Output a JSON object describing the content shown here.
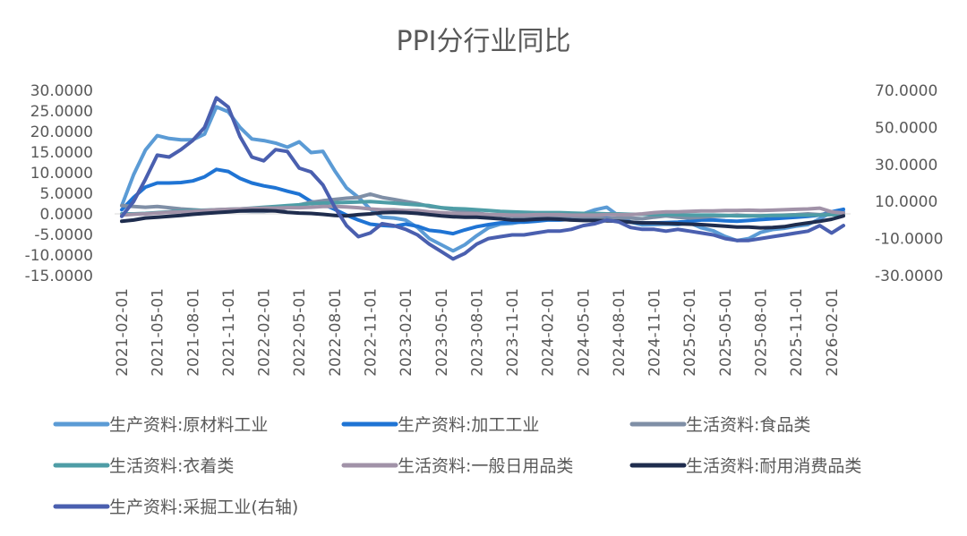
{
  "chart_data": {
    "type": "line",
    "title": "PPI分行业同比",
    "x": [
      "2021-02-01",
      "2021-03-01",
      "2021-04-01",
      "2021-05-01",
      "2021-06-01",
      "2021-07-01",
      "2021-08-01",
      "2021-09-01",
      "2021-10-01",
      "2021-11-01",
      "2021-12-01",
      "2022-01-01",
      "2022-02-01",
      "2022-03-01",
      "2022-04-01",
      "2022-05-01",
      "2022-06-01",
      "2022-07-01",
      "2022-08-01",
      "2022-09-01",
      "2022-10-01",
      "2022-11-01",
      "2022-12-01",
      "2023-01-01",
      "2023-02-01",
      "2023-03-01",
      "2023-04-01",
      "2023-05-01",
      "2023-06-01",
      "2023-07-01",
      "2023-08-01",
      "2023-09-01",
      "2023-10-01",
      "2023-11-01",
      "2023-12-01",
      "2024-01-01",
      "2024-02-01",
      "2024-03-01",
      "2024-04-01",
      "2024-05-01",
      "2024-06-01",
      "2024-07-01",
      "2024-08-01",
      "2024-09-01",
      "2024-10-01",
      "2024-11-01",
      "2024-12-01",
      "2025-01-01",
      "2025-02-01",
      "2025-03-01",
      "2025-04-01",
      "2025-05-01",
      "2025-06-01",
      "2025-07-01",
      "2025-08-01",
      "2025-09-01",
      "2025-10-01",
      "2025-11-01",
      "2025-12-01",
      "2026-01-01",
      "2026-02-01",
      "2026-03-01"
    ],
    "x_tick_labels": [
      "2021-02-01",
      "2021-05-01",
      "2021-08-01",
      "2021-11-01",
      "2022-02-01",
      "2022-05-01",
      "2022-08-01",
      "2022-11-01",
      "2023-02-01",
      "2023-05-01",
      "2023-08-01",
      "2023-11-01",
      "2024-02-01",
      "2024-05-01",
      "2024-08-01",
      "2024-11-01",
      "2025-02-01",
      "2025-05-01",
      "2025-08-01",
      "2025-11-01",
      "2026-02-01"
    ],
    "y_left": {
      "ylim": [
        -15,
        30
      ],
      "ticks": [
        "30.0000",
        "25.0000",
        "20.0000",
        "15.0000",
        "10.0000",
        "5.0000",
        "0.0000",
        "-5.0000",
        "-10.0000",
        "-15.0000"
      ]
    },
    "y_right": {
      "ylim": [
        -30,
        70
      ],
      "ticks": [
        "70.0000",
        "50.0000",
        "30.0000",
        "10.0000",
        "-10.0000",
        "-30.0000"
      ]
    },
    "series": [
      {
        "name": "生产资料:原材料工业",
        "axis": "left",
        "color": "#5B9BD5",
        "values": [
          2,
          9.5,
          15.5,
          19,
          18.3,
          18,
          18,
          19.4,
          26,
          24.8,
          21,
          18.2,
          17.8,
          17.2,
          16.2,
          17.5,
          14.9,
          15.2,
          10.5,
          6.3,
          4,
          1.2,
          -0.8,
          -1,
          -1.5,
          -3.3,
          -6,
          -7.5,
          -9,
          -7.5,
          -5.3,
          -3.4,
          -2.5,
          -2.3,
          -1.8,
          -1.5,
          -1.3,
          -0.9,
          -0.5,
          0,
          1,
          1.6,
          -0.5,
          -2,
          -2.7,
          -2.6,
          -2.5,
          -2.6,
          -2.2,
          -3.4,
          -4.1,
          -5.5,
          -6.5,
          -6,
          -4.5,
          -3.8,
          -3.5,
          -3,
          -2.6,
          -1.2,
          0.4,
          0.5
        ]
      },
      {
        "name": "生产资料:加工工业",
        "axis": "left",
        "color": "#1F74D4",
        "values": [
          1,
          4,
          6.5,
          7.5,
          7.5,
          7.6,
          8,
          9,
          10.8,
          10.3,
          8.6,
          7.5,
          6.8,
          6.3,
          5.5,
          4.8,
          3,
          2.4,
          1.1,
          -0.3,
          -1.5,
          -2.5,
          -2.8,
          -3,
          -2.5,
          -3,
          -4,
          -4.3,
          -4.8,
          -3.9,
          -3.1,
          -2.6,
          -2.2,
          -2,
          -2,
          -1.8,
          -1.5,
          -1.5,
          -1.3,
          -1,
          -1,
          -1,
          -1.3,
          -2,
          -2.2,
          -2.2,
          -2.1,
          -2,
          -1.8,
          -1.5,
          -1.5,
          -1.7,
          -1.8,
          -1.6,
          -1.4,
          -1.2,
          -1,
          -0.8,
          -0.6,
          -0.3,
          0.5,
          1.1
        ]
      },
      {
        "name": "生活资料:食品类",
        "axis": "left",
        "color": "#7F8FA6",
        "values": [
          2,
          1.8,
          1.6,
          1.8,
          1.5,
          1.2,
          1,
          0.8,
          0.5,
          0.8,
          0.7,
          0.6,
          0.6,
          0.8,
          1.5,
          2.2,
          2.8,
          3.2,
          3.5,
          3.8,
          4,
          4.8,
          4,
          3.5,
          3,
          2.5,
          1.8,
          1.5,
          1,
          0.6,
          0.2,
          -0.2,
          -0.3,
          -0.6,
          -1,
          -1,
          -0.8,
          -0.6,
          -0.6,
          -0.8,
          -1,
          -1.2,
          -1,
          -1,
          -1.2,
          -0.8,
          -0.5,
          -0.8,
          -1,
          -0.8,
          -0.6,
          -0.5,
          -0.3,
          -0.5,
          -0.5,
          -0.4,
          -0.3,
          -0.2,
          0,
          -0.2,
          0,
          -0.2
        ]
      },
      {
        "name": "生活资料:衣着类",
        "axis": "left",
        "color": "#4E9DA6",
        "values": [
          0,
          0,
          0.1,
          0.3,
          0.5,
          0.7,
          0.8,
          0.9,
          1,
          1.1,
          1.2,
          1.4,
          1.6,
          1.8,
          2,
          2.2,
          2.5,
          2.6,
          2.7,
          2.8,
          2.9,
          3,
          2.8,
          2.6,
          2.4,
          2.2,
          2,
          1.5,
          1.3,
          1.2,
          1,
          0.8,
          0.6,
          0.5,
          0.4,
          0.3,
          0.3,
          0.3,
          0.2,
          0.1,
          0.1,
          0,
          0,
          -0.1,
          -0.1,
          -0.2,
          -0.2,
          -0.2,
          -0.3,
          -0.3,
          -0.3,
          -0.4,
          -0.5,
          -0.5,
          -0.5,
          -0.4,
          -0.4,
          -0.3,
          -0.3,
          -0.3,
          -0.2,
          -0.2
        ]
      },
      {
        "name": "生活资料:一般日用品类",
        "axis": "left",
        "color": "#A192A8",
        "values": [
          -0.3,
          -0.1,
          0,
          0.2,
          0.4,
          0.5,
          0.6,
          0.8,
          1,
          1.1,
          1.2,
          1.3,
          1.4,
          1.4,
          1.5,
          1.5,
          1.6,
          1.8,
          1.8,
          1.7,
          1.5,
          1.2,
          1,
          1,
          0.8,
          0.8,
          0.5,
          0.3,
          0.1,
          0,
          0,
          -0.2,
          -0.2,
          -0.3,
          -0.3,
          -0.2,
          -0.2,
          -0.2,
          -0.3,
          -0.3,
          -0.3,
          -0.2,
          -0.2,
          -0.2,
          0,
          0.3,
          0.5,
          0.5,
          0.6,
          0.7,
          0.7,
          0.8,
          0.8,
          0.9,
          0.8,
          0.9,
          1,
          1.1,
          1.2,
          1.4,
          0.5,
          0.2
        ]
      },
      {
        "name": "生活资料:耐用消费品类",
        "axis": "left",
        "color": "#1F2D4E",
        "values": [
          -1.8,
          -1.5,
          -1,
          -0.8,
          -0.6,
          -0.4,
          -0.1,
          0.1,
          0.3,
          0.5,
          0.7,
          0.8,
          0.8,
          0.7,
          0.4,
          0.2,
          0.1,
          -0.1,
          -0.4,
          -0.5,
          -0.2,
          0,
          0.3,
          0.4,
          0.3,
          0.1,
          -0.2,
          -0.5,
          -0.7,
          -0.8,
          -0.8,
          -1,
          -1.2,
          -1.5,
          -1.5,
          -1.3,
          -1.2,
          -1.3,
          -1.5,
          -1.6,
          -1.6,
          -1.7,
          -1.8,
          -2,
          -2.2,
          -2.2,
          -2.3,
          -2.4,
          -2.5,
          -2.6,
          -2.8,
          -3,
          -3.2,
          -3.2,
          -3.4,
          -3.3,
          -3.1,
          -2.6,
          -2.2,
          -1.8,
          -1.3,
          -0.5
        ]
      },
      {
        "name": "生产资料:采掘工业(右轴)",
        "axis": "right",
        "color": "#4A5FAF",
        "values": [
          2,
          10,
          22,
          35,
          34,
          38,
          43,
          50,
          66,
          61,
          45,
          34,
          32,
          38,
          37,
          28,
          26,
          19,
          7,
          -3,
          -9,
          -7,
          -2,
          -3,
          -5,
          -8,
          -13,
          -17,
          -21,
          -18,
          -13,
          -10,
          -9,
          -8,
          -8,
          -7,
          -6,
          -6,
          -5,
          -3,
          -2,
          0,
          -1,
          -4,
          -5,
          -5,
          -6,
          -5,
          -6,
          -7,
          -8,
          -10,
          -11,
          -11,
          -10,
          -9,
          -8,
          -7,
          -6,
          -3,
          -7,
          -3
        ]
      }
    ]
  }
}
